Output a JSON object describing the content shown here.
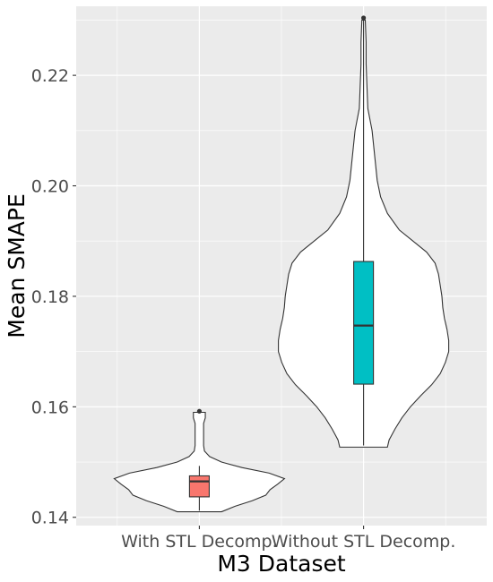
{
  "chart_data": {
    "type": "violin",
    "xlabel": "M3 Dataset",
    "ylabel": "Mean SMAPE",
    "categories": [
      "With STL Decomp.",
      "Without STL Decomp."
    ],
    "ylim": [
      0.1385,
      0.2325
    ],
    "yticks": [
      0.14,
      0.16,
      0.18,
      0.2,
      0.22
    ],
    "ytick_labels": [
      "0.14",
      "0.16",
      "0.18",
      "0.20",
      "0.22"
    ],
    "grid": true,
    "series": [
      {
        "category": "With STL Decomp.",
        "fill": "#F8766D",
        "box": {
          "q1": 0.1437,
          "median": 0.1465,
          "q3": 0.1475,
          "whisker_low": 0.1412,
          "whisker_high": 0.1493
        },
        "outliers": [
          0.1592
        ],
        "density": [
          [
            0.141,
            0.26
          ],
          [
            0.142,
            0.42
          ],
          [
            0.143,
            0.62
          ],
          [
            0.144,
            0.78
          ],
          [
            0.145,
            0.83
          ],
          [
            0.146,
            0.92
          ],
          [
            0.147,
            1.0
          ],
          [
            0.148,
            0.82
          ],
          [
            0.149,
            0.5
          ],
          [
            0.15,
            0.26
          ],
          [
            0.151,
            0.12
          ],
          [
            0.152,
            0.06
          ],
          [
            0.153,
            0.05
          ],
          [
            0.154,
            0.05
          ],
          [
            0.155,
            0.05
          ],
          [
            0.156,
            0.05
          ],
          [
            0.157,
            0.05
          ],
          [
            0.158,
            0.07
          ],
          [
            0.159,
            0.07
          ]
        ]
      },
      {
        "category": "Without STL Decomp.",
        "fill": "#00BFC4",
        "box": {
          "q1": 0.1641,
          "median": 0.1747,
          "q3": 0.1863,
          "whisker_low": 0.153,
          "whisker_high": 0.23
        },
        "outliers": [
          0.2304
        ],
        "density": [
          [
            0.1527,
            0.28
          ],
          [
            0.154,
            0.3
          ],
          [
            0.156,
            0.37
          ],
          [
            0.158,
            0.45
          ],
          [
            0.16,
            0.55
          ],
          [
            0.162,
            0.67
          ],
          [
            0.164,
            0.8
          ],
          [
            0.166,
            0.9
          ],
          [
            0.168,
            0.96
          ],
          [
            0.17,
            1.0
          ],
          [
            0.172,
            1.0
          ],
          [
            0.174,
            0.98
          ],
          [
            0.176,
            0.95
          ],
          [
            0.178,
            0.93
          ],
          [
            0.18,
            0.92
          ],
          [
            0.182,
            0.9
          ],
          [
            0.184,
            0.88
          ],
          [
            0.186,
            0.84
          ],
          [
            0.188,
            0.74
          ],
          [
            0.19,
            0.58
          ],
          [
            0.192,
            0.42
          ],
          [
            0.195,
            0.28
          ],
          [
            0.198,
            0.2
          ],
          [
            0.201,
            0.16
          ],
          [
            0.204,
            0.14
          ],
          [
            0.207,
            0.12
          ],
          [
            0.21,
            0.1
          ],
          [
            0.214,
            0.05
          ],
          [
            0.218,
            0.04
          ],
          [
            0.222,
            0.03
          ],
          [
            0.226,
            0.03
          ],
          [
            0.23,
            0.02
          ]
        ]
      }
    ]
  }
}
